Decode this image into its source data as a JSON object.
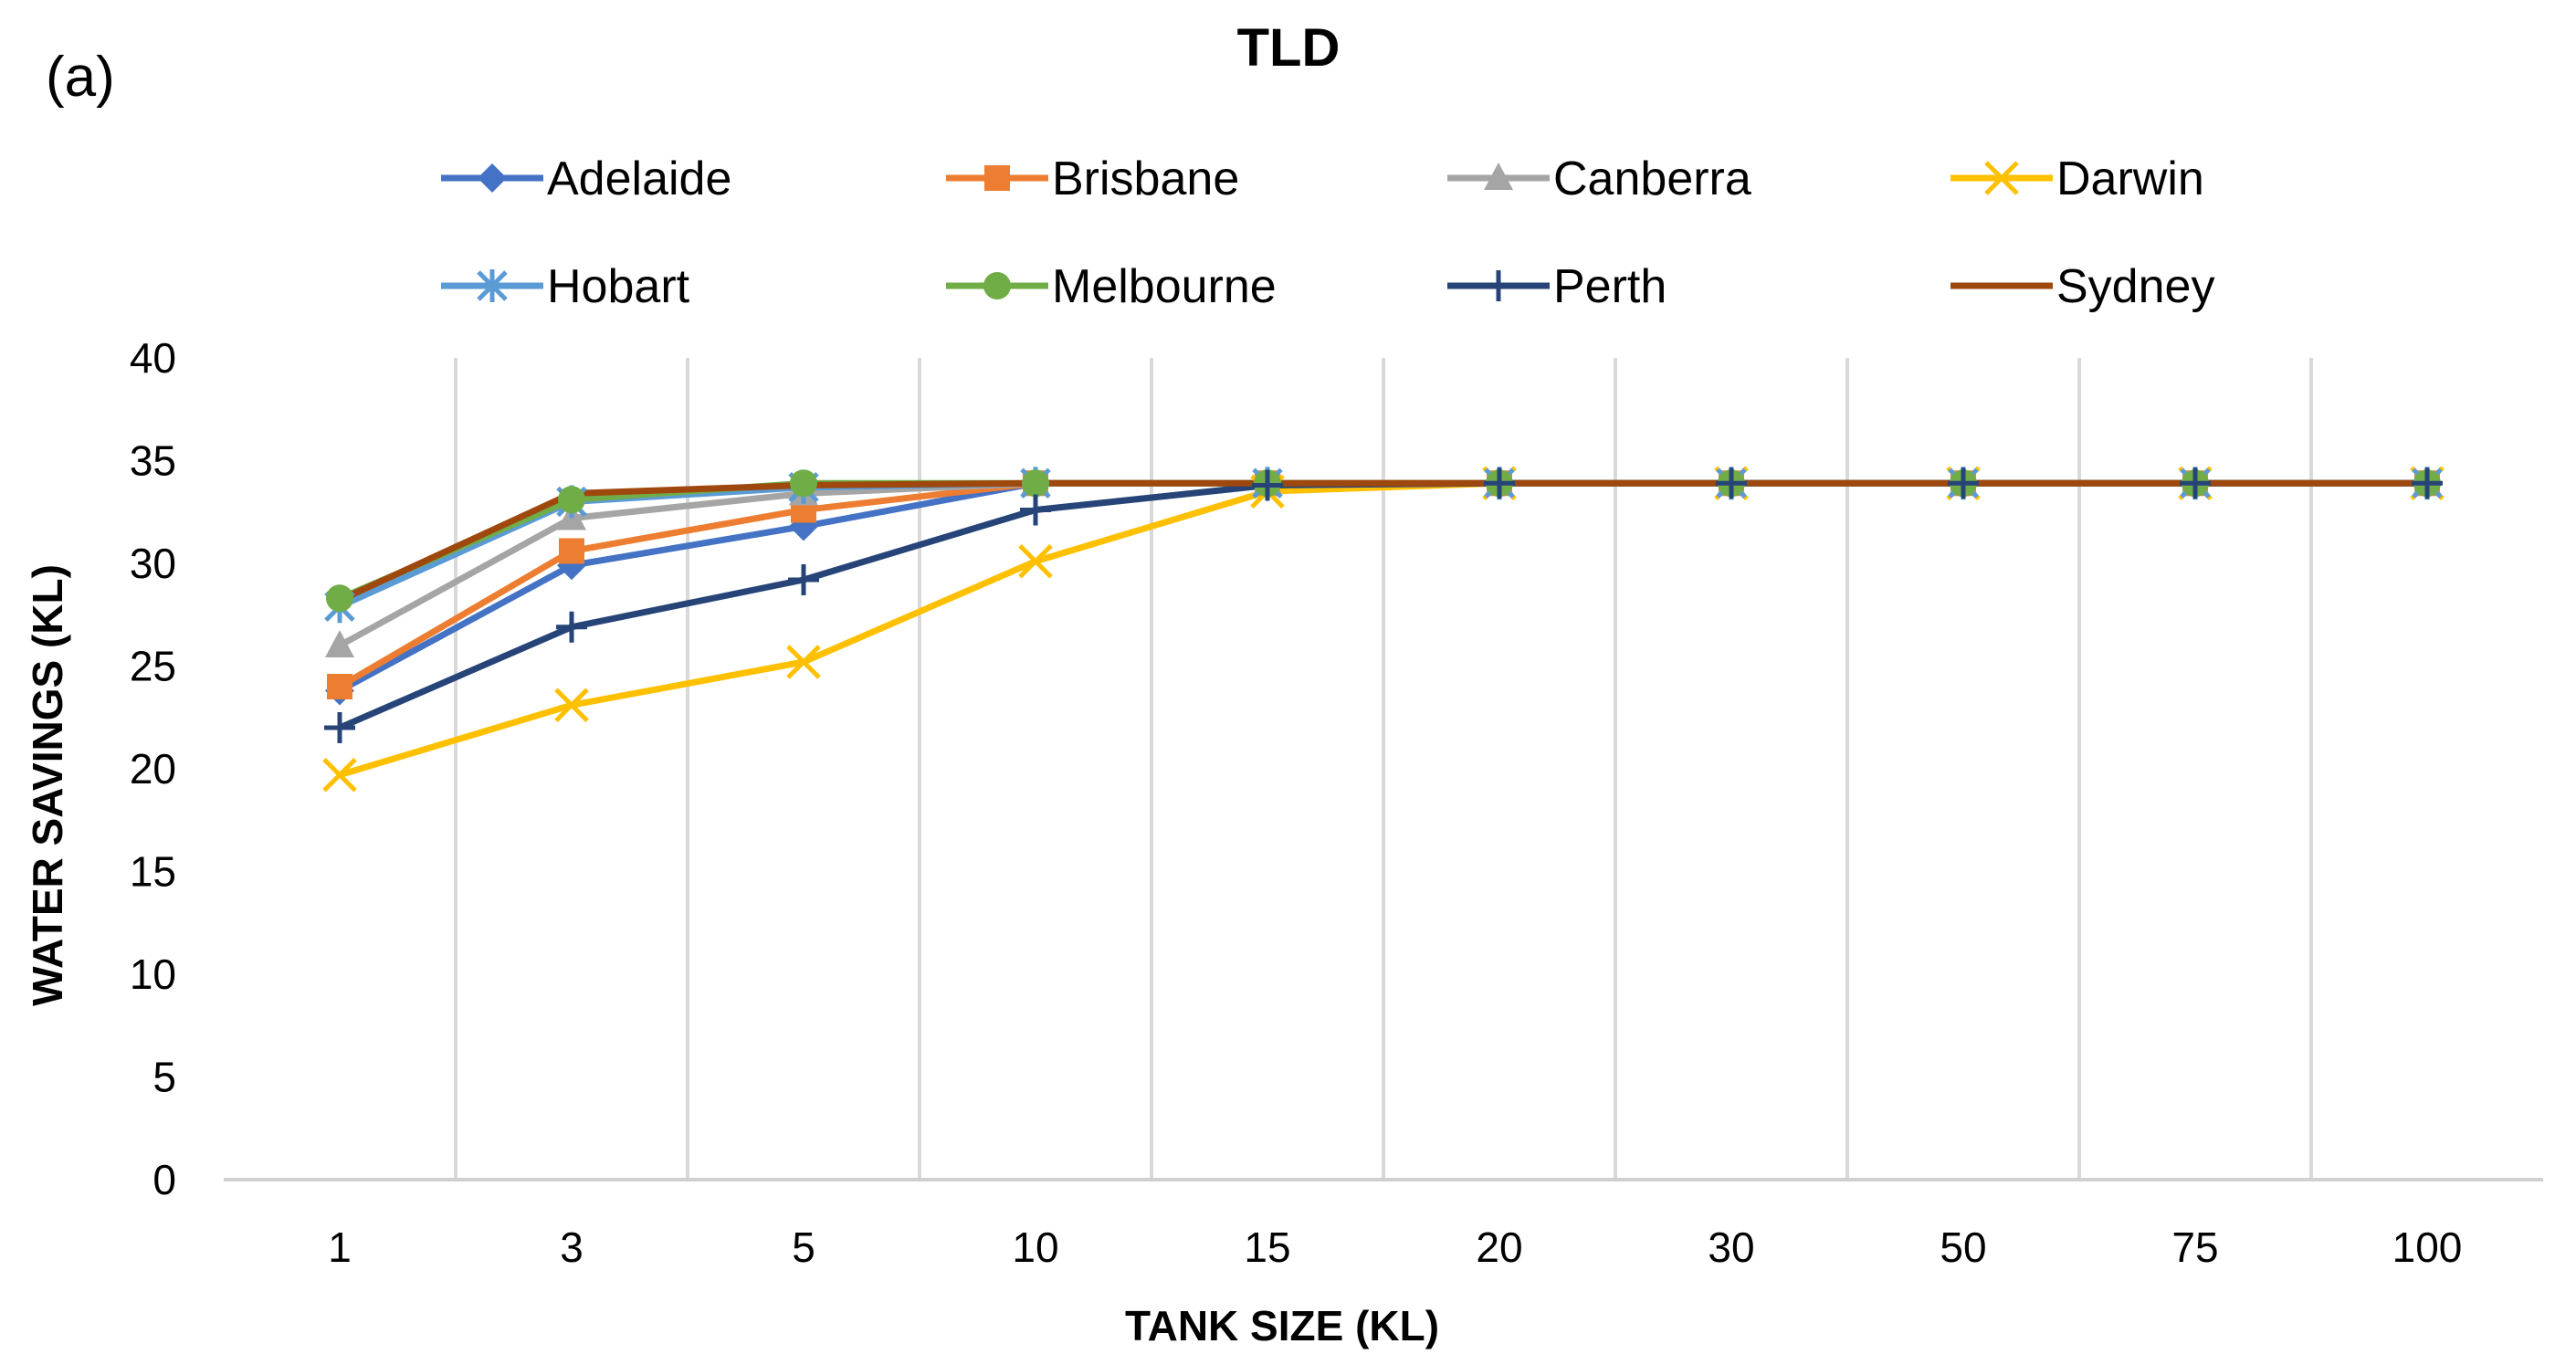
{
  "panel_label": "(a)",
  "chart_data": {
    "type": "line",
    "title": "TLD",
    "xlabel": "TANK SIZE (KL)",
    "ylabel": "WATER  SAVINGS (KL)",
    "categories": [
      "1",
      "3",
      "5",
      "10",
      "15",
      "20",
      "30",
      "50",
      "75",
      "100"
    ],
    "ylim": [
      0,
      40
    ],
    "yticks": [
      "0",
      "5",
      "10",
      "15",
      "20",
      "25",
      "30",
      "35",
      "40"
    ],
    "grid": "vertical",
    "legend_position": "top",
    "series": [
      {
        "name": "Adelaide",
        "color": "#4472C4",
        "marker": "diamond",
        "values": [
          23.8,
          29.9,
          31.8,
          33.9,
          33.9,
          33.9,
          33.9,
          33.9,
          33.9,
          33.9
        ]
      },
      {
        "name": "Brisbane",
        "color": "#ED7D31",
        "marker": "square",
        "values": [
          24.0,
          30.6,
          32.6,
          33.9,
          33.9,
          33.9,
          33.9,
          33.9,
          33.9,
          33.9
        ]
      },
      {
        "name": "Canberra",
        "color": "#A5A5A5",
        "marker": "triangle",
        "values": [
          26.0,
          32.2,
          33.4,
          33.9,
          33.9,
          33.9,
          33.9,
          33.9,
          33.9,
          33.9
        ]
      },
      {
        "name": "Darwin",
        "color": "#FFC000",
        "marker": "x",
        "values": [
          19.7,
          23.1,
          25.2,
          30.1,
          33.5,
          33.9,
          33.9,
          33.9,
          33.9,
          33.9
        ]
      },
      {
        "name": "Hobart",
        "color": "#5B9BD5",
        "marker": "star",
        "values": [
          27.9,
          33.0,
          33.7,
          33.9,
          33.9,
          33.9,
          33.9,
          33.9,
          33.9,
          33.9
        ]
      },
      {
        "name": "Melbourne",
        "color": "#70AD47",
        "marker": "circle",
        "values": [
          28.3,
          33.1,
          33.9,
          33.9,
          33.9,
          33.9,
          33.9,
          33.9,
          33.9,
          33.9
        ]
      },
      {
        "name": "Perth",
        "color": "#264478",
        "marker": "plus",
        "values": [
          22.0,
          26.9,
          29.2,
          32.6,
          33.8,
          33.9,
          33.9,
          33.9,
          33.9,
          33.9
        ]
      },
      {
        "name": "Sydney",
        "color": "#9E480E",
        "marker": "none",
        "values": [
          28.2,
          33.4,
          33.8,
          33.9,
          33.9,
          33.9,
          33.9,
          33.9,
          33.9,
          33.9
        ]
      }
    ]
  }
}
